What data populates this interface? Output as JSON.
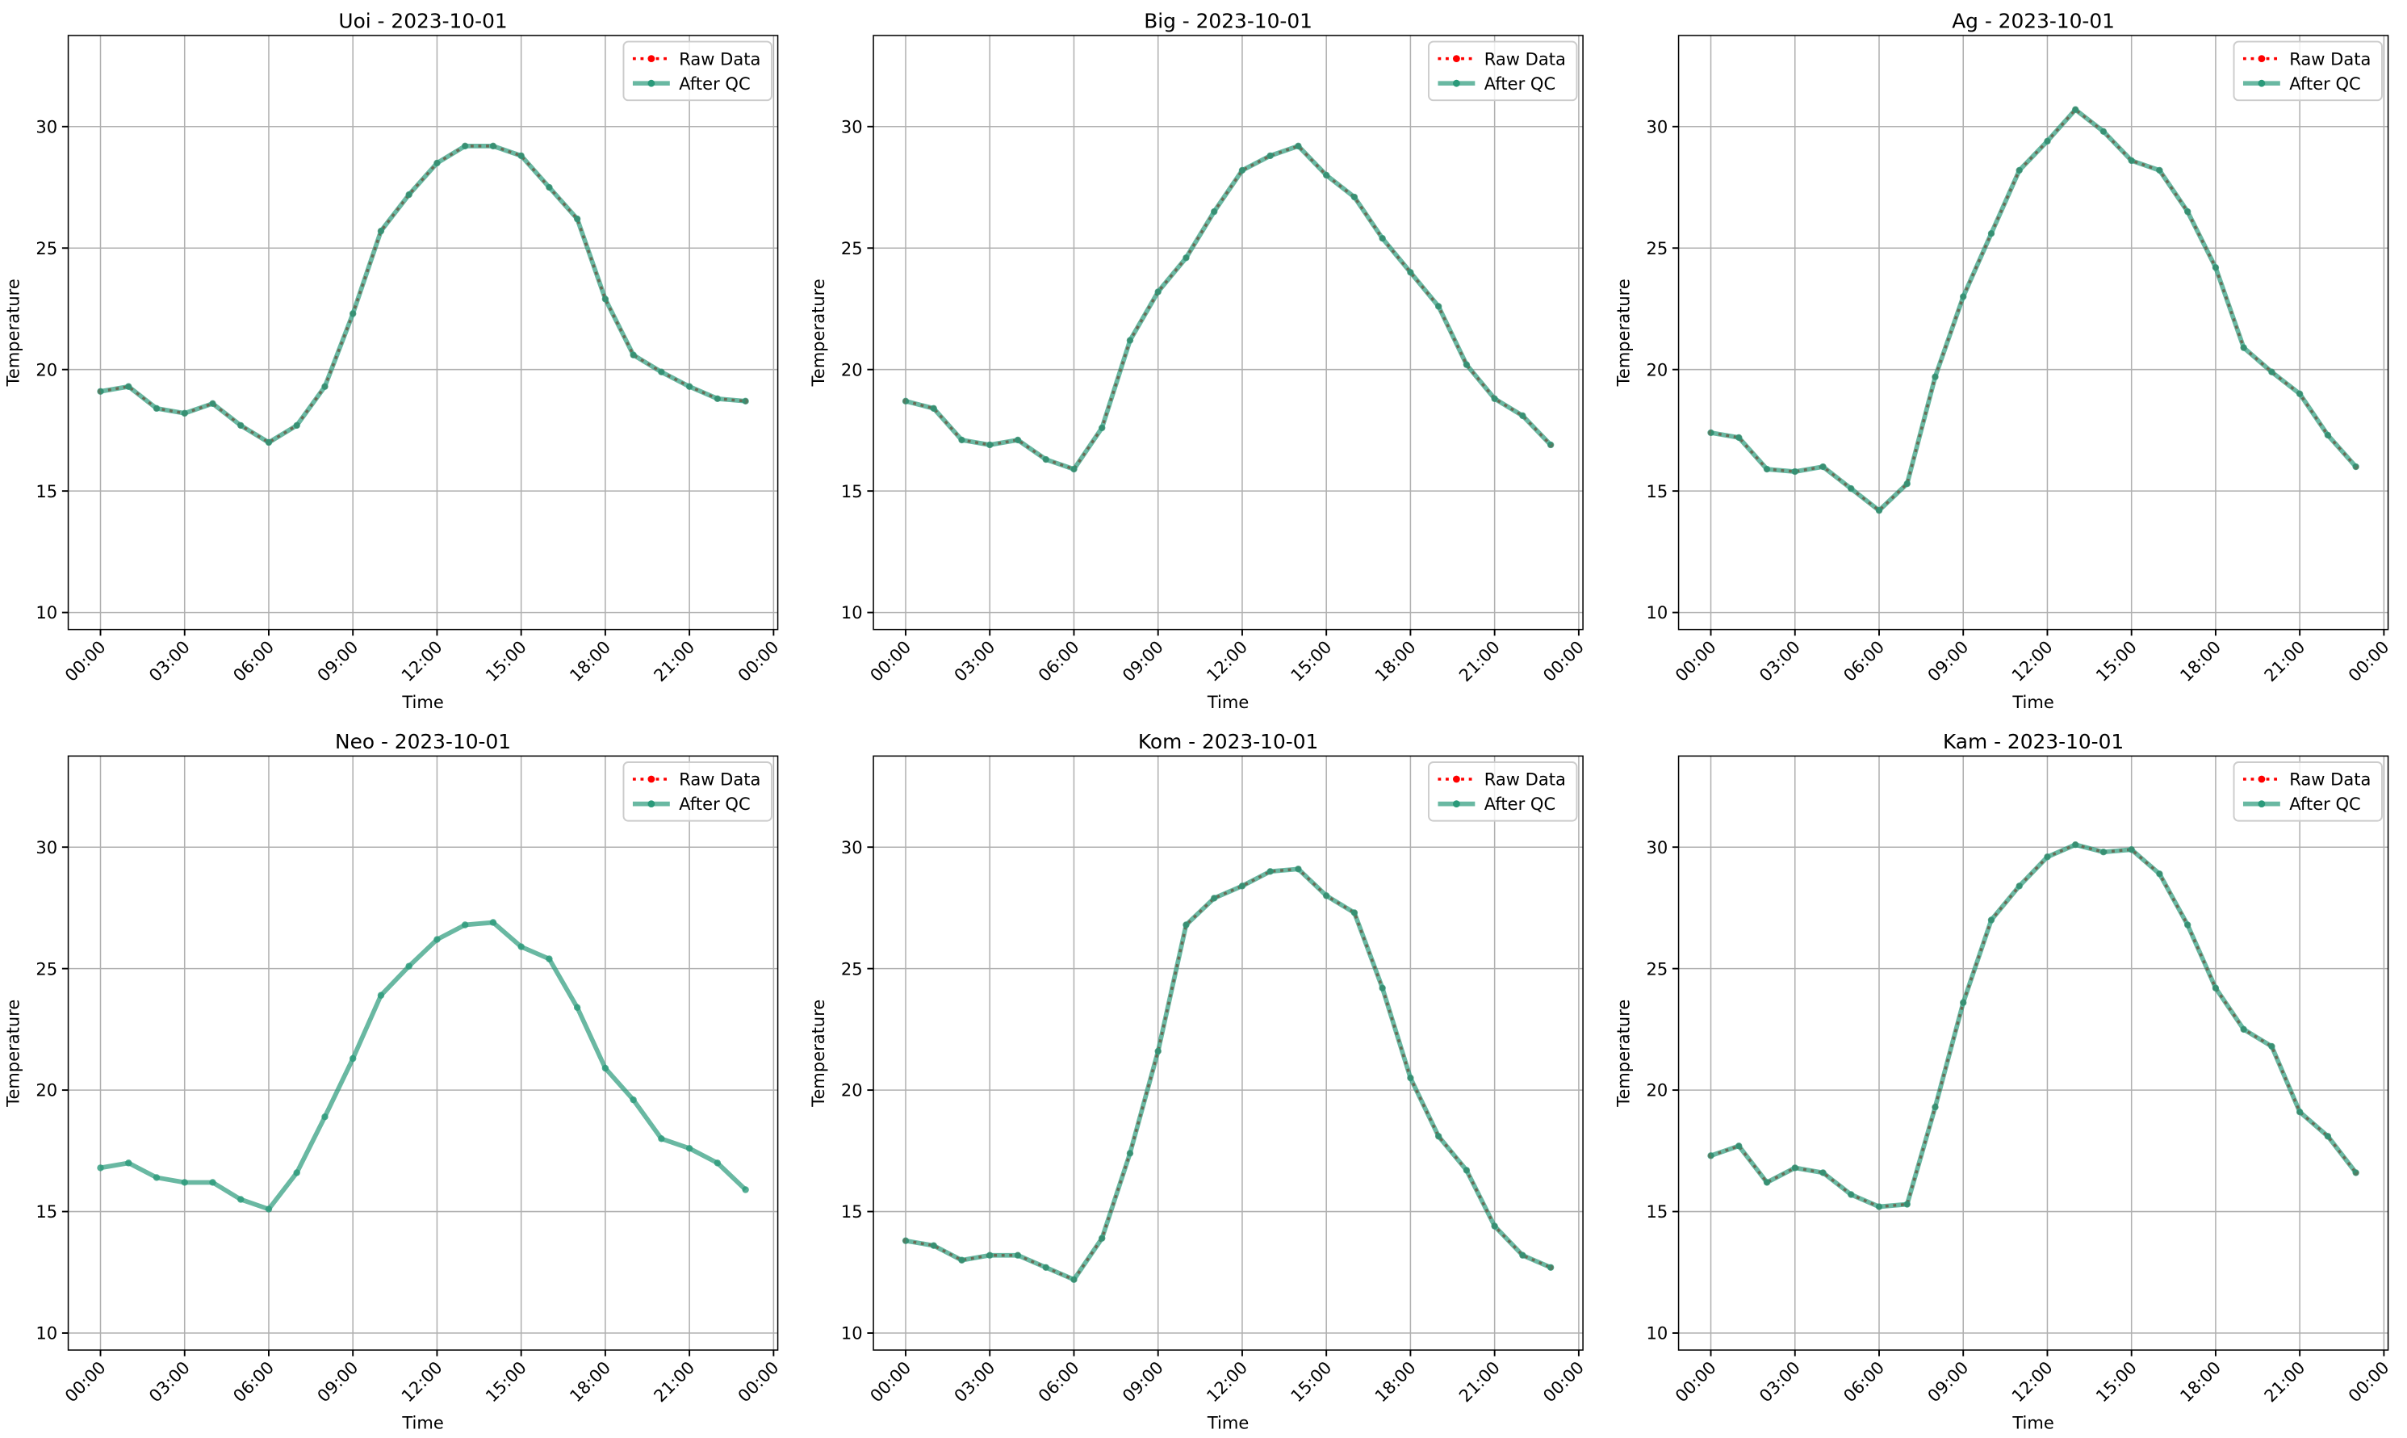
{
  "chart_data": [
    {
      "type": "line",
      "title": "Uoi - 2023-10-01",
      "x_label": "Time",
      "y_label": "Temperature",
      "x": [
        0,
        1,
        2,
        3,
        4,
        5,
        6,
        7,
        8,
        9,
        10,
        11,
        12,
        13,
        14,
        15,
        16,
        17,
        18,
        19,
        20,
        21,
        22,
        23
      ],
      "series": [
        {
          "name": "Raw Data",
          "color": "#ff0000",
          "values": [
            19.1,
            19.3,
            18.4,
            18.2,
            18.6,
            17.7,
            17.0,
            17.7,
            19.3,
            22.3,
            25.7,
            27.2,
            28.5,
            29.2,
            29.2,
            28.8,
            27.5,
            26.2,
            22.9,
            20.6,
            19.9,
            19.3,
            18.8,
            18.7
          ]
        },
        {
          "name": "After QC",
          "color": "#2a9a7a",
          "values": [
            19.1,
            19.3,
            18.4,
            18.2,
            18.6,
            17.7,
            17.0,
            17.7,
            19.3,
            22.3,
            25.7,
            27.2,
            28.5,
            29.2,
            29.2,
            28.8,
            27.5,
            26.2,
            22.9,
            20.6,
            19.9,
            19.3,
            18.8,
            18.7
          ]
        }
      ],
      "xlim": [
        -1.15,
        24.15
      ],
      "xticks": [
        {
          "value": 0,
          "label": "00:00"
        },
        {
          "value": 3,
          "label": "03:00"
        },
        {
          "value": 6,
          "label": "06:00"
        },
        {
          "value": 9,
          "label": "09:00"
        },
        {
          "value": 12,
          "label": "12:00"
        },
        {
          "value": 15,
          "label": "15:00"
        },
        {
          "value": 18,
          "label": "18:00"
        },
        {
          "value": 21,
          "label": "21:00"
        },
        {
          "value": 24,
          "label": "00:00"
        }
      ],
      "ylim": [
        9.3,
        33.75
      ],
      "yticks": [
        10,
        15,
        20,
        25,
        30
      ],
      "grid": true,
      "legend": "upper right"
    },
    {
      "type": "line",
      "title": "Big - 2023-10-01",
      "x_label": "Time",
      "y_label": "Temperature",
      "x": [
        0,
        1,
        2,
        3,
        4,
        5,
        6,
        7,
        8,
        9,
        10,
        11,
        12,
        13,
        14,
        15,
        16,
        17,
        18,
        19,
        20,
        21,
        22,
        23
      ],
      "series": [
        {
          "name": "Raw Data",
          "color": "#ff0000",
          "values": [
            18.7,
            18.4,
            17.1,
            16.9,
            17.1,
            16.3,
            15.9,
            17.6,
            21.2,
            23.2,
            24.6,
            26.5,
            28.2,
            28.8,
            29.2,
            28.0,
            27.1,
            25.4,
            24.0,
            22.6,
            20.2,
            18.8,
            18.1,
            16.9
          ]
        },
        {
          "name": "After QC",
          "color": "#2a9a7a",
          "values": [
            18.7,
            18.4,
            17.1,
            16.9,
            17.1,
            16.3,
            15.9,
            17.6,
            21.2,
            23.2,
            24.6,
            26.5,
            28.2,
            28.8,
            29.2,
            28.0,
            27.1,
            25.4,
            24.0,
            22.6,
            20.2,
            18.8,
            18.1,
            16.9
          ]
        }
      ],
      "xlim": [
        -1.15,
        24.15
      ],
      "xticks": [
        {
          "value": 0,
          "label": "00:00"
        },
        {
          "value": 3,
          "label": "03:00"
        },
        {
          "value": 6,
          "label": "06:00"
        },
        {
          "value": 9,
          "label": "09:00"
        },
        {
          "value": 12,
          "label": "12:00"
        },
        {
          "value": 15,
          "label": "15:00"
        },
        {
          "value": 18,
          "label": "18:00"
        },
        {
          "value": 21,
          "label": "21:00"
        },
        {
          "value": 24,
          "label": "00:00"
        }
      ],
      "ylim": [
        9.3,
        33.75
      ],
      "yticks": [
        10,
        15,
        20,
        25,
        30
      ],
      "grid": true,
      "legend": "upper right"
    },
    {
      "type": "line",
      "title": "Ag - 2023-10-01",
      "x_label": "Time",
      "y_label": "Temperature",
      "x": [
        0,
        1,
        2,
        3,
        4,
        5,
        6,
        7,
        8,
        9,
        10,
        11,
        12,
        13,
        14,
        15,
        16,
        17,
        18,
        19,
        20,
        21,
        22,
        23
      ],
      "series": [
        {
          "name": "Raw Data",
          "color": "#ff0000",
          "values": [
            17.4,
            17.2,
            15.9,
            15.8,
            16.0,
            15.1,
            14.2,
            15.3,
            19.7,
            23.0,
            25.6,
            28.2,
            29.4,
            30.7,
            29.8,
            28.6,
            28.2,
            26.5,
            24.2,
            20.9,
            19.9,
            19.0,
            17.3,
            16.0
          ]
        },
        {
          "name": "After QC",
          "color": "#2a9a7a",
          "values": [
            17.4,
            17.2,
            15.9,
            15.8,
            16.0,
            15.1,
            14.2,
            15.3,
            19.7,
            23.0,
            25.6,
            28.2,
            29.4,
            30.7,
            29.8,
            28.6,
            28.2,
            26.5,
            24.2,
            20.9,
            19.9,
            19.0,
            17.3,
            16.0
          ]
        }
      ],
      "xlim": [
        -1.15,
        24.15
      ],
      "xticks": [
        {
          "value": 0,
          "label": "00:00"
        },
        {
          "value": 3,
          "label": "03:00"
        },
        {
          "value": 6,
          "label": "06:00"
        },
        {
          "value": 9,
          "label": "09:00"
        },
        {
          "value": 12,
          "label": "12:00"
        },
        {
          "value": 15,
          "label": "15:00"
        },
        {
          "value": 18,
          "label": "18:00"
        },
        {
          "value": 21,
          "label": "21:00"
        },
        {
          "value": 24,
          "label": "00:00"
        }
      ],
      "ylim": [
        9.3,
        33.75
      ],
      "yticks": [
        10,
        15,
        20,
        25,
        30
      ],
      "grid": true,
      "legend": "upper right"
    },
    {
      "type": "line",
      "title": "Neo - 2023-10-01",
      "x_label": "Time",
      "y_label": "Temperature",
      "x": [
        0,
        1,
        2,
        3,
        4,
        5,
        6,
        7,
        8,
        9,
        10,
        11,
        12,
        13,
        14,
        15,
        16,
        17,
        18,
        19,
        20,
        21,
        22,
        23
      ],
      "series": [
        {
          "name": "Raw Data",
          "color": "#ff0000",
          "values": [
            null,
            null,
            null,
            null,
            null,
            null,
            null,
            null,
            null,
            null,
            null,
            null,
            null,
            null,
            null,
            null,
            null,
            null,
            null,
            null,
            null,
            null,
            null,
            null
          ]
        },
        {
          "name": "After QC",
          "color": "#2a9a7a",
          "values": [
            16.8,
            17.0,
            16.4,
            16.2,
            16.2,
            15.5,
            15.1,
            16.6,
            18.9,
            21.3,
            23.9,
            25.1,
            26.2,
            26.8,
            26.9,
            25.9,
            25.4,
            23.4,
            20.9,
            19.6,
            18.0,
            17.6,
            17.0,
            15.9
          ]
        }
      ],
      "xlim": [
        -1.15,
        24.15
      ],
      "xticks": [
        {
          "value": 0,
          "label": "00:00"
        },
        {
          "value": 3,
          "label": "03:00"
        },
        {
          "value": 6,
          "label": "06:00"
        },
        {
          "value": 9,
          "label": "09:00"
        },
        {
          "value": 12,
          "label": "12:00"
        },
        {
          "value": 15,
          "label": "15:00"
        },
        {
          "value": 18,
          "label": "18:00"
        },
        {
          "value": 21,
          "label": "21:00"
        },
        {
          "value": 24,
          "label": "00:00"
        }
      ],
      "ylim": [
        9.3,
        33.75
      ],
      "yticks": [
        10,
        15,
        20,
        25,
        30
      ],
      "grid": true,
      "legend": "upper right"
    },
    {
      "type": "line",
      "title": "Kom - 2023-10-01",
      "x_label": "Time",
      "y_label": "Temperature",
      "x": [
        0,
        1,
        2,
        3,
        4,
        5,
        6,
        7,
        8,
        9,
        10,
        11,
        12,
        13,
        14,
        15,
        16,
        17,
        18,
        19,
        20,
        21,
        22,
        23
      ],
      "series": [
        {
          "name": "Raw Data",
          "color": "#ff0000",
          "values": [
            13.8,
            13.6,
            13.0,
            13.2,
            13.2,
            12.7,
            12.2,
            13.9,
            17.4,
            21.6,
            26.8,
            27.9,
            28.4,
            29.0,
            29.1,
            28.0,
            27.3,
            24.2,
            20.5,
            18.1,
            16.7,
            14.4,
            13.2,
            12.7
          ]
        },
        {
          "name": "After QC",
          "color": "#2a9a7a",
          "values": [
            13.8,
            13.6,
            13.0,
            13.2,
            13.2,
            12.7,
            12.2,
            13.9,
            17.4,
            21.6,
            26.8,
            27.9,
            28.4,
            29.0,
            29.1,
            28.0,
            27.3,
            24.2,
            20.5,
            18.1,
            16.7,
            14.4,
            13.2,
            12.7
          ]
        }
      ],
      "xlim": [
        -1.15,
        24.15
      ],
      "xticks": [
        {
          "value": 0,
          "label": "00:00"
        },
        {
          "value": 3,
          "label": "03:00"
        },
        {
          "value": 6,
          "label": "06:00"
        },
        {
          "value": 9,
          "label": "09:00"
        },
        {
          "value": 12,
          "label": "12:00"
        },
        {
          "value": 15,
          "label": "15:00"
        },
        {
          "value": 18,
          "label": "18:00"
        },
        {
          "value": 21,
          "label": "21:00"
        },
        {
          "value": 24,
          "label": "00:00"
        }
      ],
      "ylim": [
        9.3,
        33.75
      ],
      "yticks": [
        10,
        15,
        20,
        25,
        30
      ],
      "grid": true,
      "legend": "upper right"
    },
    {
      "type": "line",
      "title": "Kam - 2023-10-01",
      "x_label": "Time",
      "y_label": "Temperature",
      "x": [
        0,
        1,
        2,
        3,
        4,
        5,
        6,
        7,
        8,
        9,
        10,
        11,
        12,
        13,
        14,
        15,
        16,
        17,
        18,
        19,
        20,
        21,
        22,
        23
      ],
      "series": [
        {
          "name": "Raw Data",
          "color": "#ff0000",
          "values": [
            17.3,
            17.7,
            16.2,
            16.8,
            16.6,
            15.7,
            15.2,
            15.3,
            19.3,
            23.6,
            27.0,
            28.4,
            29.6,
            30.1,
            29.8,
            29.9,
            28.9,
            26.8,
            24.2,
            22.5,
            21.8,
            19.1,
            18.1,
            16.6
          ]
        },
        {
          "name": "After QC",
          "color": "#2a9a7a",
          "values": [
            17.3,
            17.7,
            16.2,
            16.8,
            16.6,
            15.7,
            15.2,
            15.3,
            19.3,
            23.6,
            27.0,
            28.4,
            29.6,
            30.1,
            29.8,
            29.9,
            28.9,
            26.8,
            24.2,
            22.5,
            21.8,
            19.1,
            18.1,
            16.6
          ]
        }
      ],
      "xlim": [
        -1.15,
        24.15
      ],
      "xticks": [
        {
          "value": 0,
          "label": "00:00"
        },
        {
          "value": 3,
          "label": "03:00"
        },
        {
          "value": 6,
          "label": "06:00"
        },
        {
          "value": 9,
          "label": "09:00"
        },
        {
          "value": 12,
          "label": "12:00"
        },
        {
          "value": 15,
          "label": "15:00"
        },
        {
          "value": 18,
          "label": "18:00"
        },
        {
          "value": 21,
          "label": "21:00"
        },
        {
          "value": 24,
          "label": "00:00"
        }
      ],
      "ylim": [
        9.3,
        33.75
      ],
      "yticks": [
        10,
        15,
        20,
        25,
        30
      ],
      "grid": true,
      "legend": "upper right"
    }
  ]
}
